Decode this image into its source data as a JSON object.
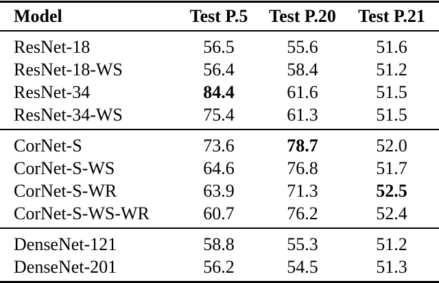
{
  "table": {
    "columns": [
      "Model",
      "Test P.5",
      "Test P.20",
      "Test P.21"
    ],
    "sections": [
      {
        "name": "resnet",
        "rows": [
          {
            "model": "ResNet-18",
            "values": [
              "56.5",
              "55.6",
              "51.6"
            ],
            "bold": [
              false,
              false,
              false
            ]
          },
          {
            "model": "ResNet-18-WS",
            "values": [
              "56.4",
              "58.4",
              "51.2"
            ],
            "bold": [
              false,
              false,
              false
            ]
          },
          {
            "model": "ResNet-34",
            "values": [
              "84.4",
              "61.6",
              "51.5"
            ],
            "bold": [
              true,
              false,
              false
            ]
          },
          {
            "model": "ResNet-34-WS",
            "values": [
              "75.4",
              "61.3",
              "51.5"
            ],
            "bold": [
              false,
              false,
              false
            ]
          }
        ]
      },
      {
        "name": "cornet",
        "rows": [
          {
            "model": "CorNet-S",
            "values": [
              "73.6",
              "78.7",
              "52.0"
            ],
            "bold": [
              false,
              true,
              false
            ]
          },
          {
            "model": "CorNet-S-WS",
            "values": [
              "64.6",
              "76.8",
              "51.7"
            ],
            "bold": [
              false,
              false,
              false
            ]
          },
          {
            "model": "CorNet-S-WR",
            "values": [
              "63.9",
              "71.3",
              "52.5"
            ],
            "bold": [
              false,
              false,
              true
            ]
          },
          {
            "model": "CorNet-S-WS-WR",
            "values": [
              "60.7",
              "76.2",
              "52.4"
            ],
            "bold": [
              false,
              false,
              false
            ]
          }
        ]
      },
      {
        "name": "densenet",
        "rows": [
          {
            "model": "DenseNet-121",
            "values": [
              "58.8",
              "55.3",
              "51.2"
            ],
            "bold": [
              false,
              false,
              false
            ]
          },
          {
            "model": "DenseNet-201",
            "values": [
              "56.2",
              "54.5",
              "51.3"
            ],
            "bold": [
              false,
              false,
              false
            ]
          }
        ]
      }
    ],
    "rule_color": "#000000",
    "text_color": "#000000",
    "background_color": "#ffffff"
  }
}
